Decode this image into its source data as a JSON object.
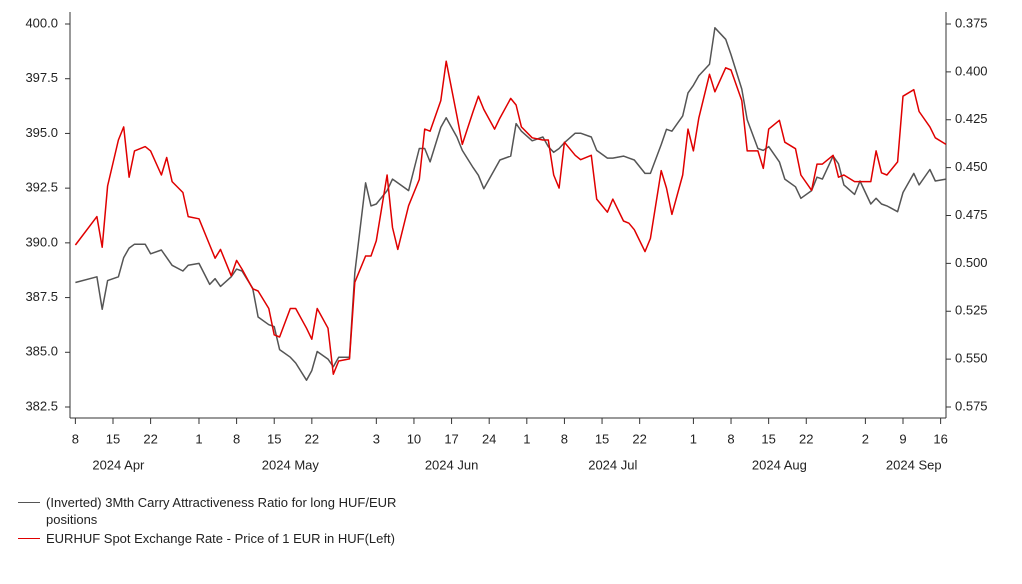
{
  "chart_data": {
    "type": "line",
    "x": [
      "2024-04-08",
      "2024-04-12",
      "2024-04-13",
      "2024-04-14",
      "2024-04-16",
      "2024-04-17",
      "2024-04-18",
      "2024-04-19",
      "2024-04-21",
      "2024-04-22",
      "2024-04-24",
      "2024-04-25",
      "2024-04-26",
      "2024-04-28",
      "2024-04-29",
      "2024-05-01",
      "2024-05-03",
      "2024-05-04",
      "2024-05-05",
      "2024-05-07",
      "2024-05-08",
      "2024-05-09",
      "2024-05-11",
      "2024-05-12",
      "2024-05-14",
      "2024-05-15",
      "2024-05-16",
      "2024-05-18",
      "2024-05-19",
      "2024-05-21",
      "2024-05-22",
      "2024-05-23",
      "2024-05-25",
      "2024-05-26",
      "2024-05-27",
      "2024-05-29",
      "2024-05-30",
      "2024-06-01",
      "2024-06-02",
      "2024-06-03",
      "2024-06-05",
      "2024-06-06",
      "2024-06-07",
      "2024-06-09",
      "2024-06-11",
      "2024-06-12",
      "2024-06-13",
      "2024-06-15",
      "2024-06-16",
      "2024-06-18",
      "2024-06-19",
      "2024-06-21",
      "2024-06-22",
      "2024-06-23",
      "2024-06-25",
      "2024-06-26",
      "2024-06-28",
      "2024-06-29",
      "2024-06-30",
      "2024-07-02",
      "2024-07-04",
      "2024-07-05",
      "2024-07-06",
      "2024-07-07",
      "2024-07-08",
      "2024-07-10",
      "2024-07-11",
      "2024-07-13",
      "2024-07-14",
      "2024-07-16",
      "2024-07-17",
      "2024-07-19",
      "2024-07-20",
      "2024-07-21",
      "2024-07-23",
      "2024-07-24",
      "2024-07-26",
      "2024-07-27",
      "2024-07-28",
      "2024-07-30",
      "2024-07-31",
      "2024-08-01",
      "2024-08-02",
      "2024-08-04",
      "2024-08-05",
      "2024-08-07",
      "2024-08-08",
      "2024-08-10",
      "2024-08-11",
      "2024-08-13",
      "2024-08-14",
      "2024-08-15",
      "2024-08-17",
      "2024-08-18",
      "2024-08-20",
      "2024-08-21",
      "2024-08-23",
      "2024-08-24",
      "2024-08-25",
      "2024-08-27",
      "2024-08-28",
      "2024-08-29",
      "2024-08-31",
      "2024-09-01",
      "2024-09-03",
      "2024-09-04",
      "2024-09-05",
      "2024-09-06",
      "2024-09-08",
      "2024-09-09",
      "2024-09-11",
      "2024-09-12",
      "2024-09-14",
      "2024-09-15",
      "2024-09-17"
    ],
    "series": [
      {
        "name": "(Inverted) 3Mth Carry Attractiveness Ratio for long HUF/EUR positions",
        "color": "#555555",
        "axis": "y2",
        "values": [
          0.51,
          0.507,
          0.524,
          0.509,
          0.507,
          0.497,
          0.492,
          0.49,
          0.49,
          0.495,
          0.493,
          0.497,
          0.501,
          0.504,
          0.501,
          0.5,
          0.511,
          0.508,
          0.512,
          0.507,
          0.503,
          0.504,
          0.513,
          0.528,
          0.532,
          0.533,
          0.545,
          0.549,
          0.552,
          0.561,
          0.556,
          0.546,
          0.55,
          0.554,
          0.549,
          0.549,
          0.505,
          0.458,
          0.47,
          0.469,
          0.462,
          0.456,
          0.458,
          0.462,
          0.44,
          0.44,
          0.447,
          0.429,
          0.424,
          0.434,
          0.441,
          0.45,
          0.454,
          0.461,
          0.451,
          0.446,
          0.444,
          0.427,
          0.431,
          0.436,
          0.434,
          0.439,
          0.442,
          0.44,
          0.437,
          0.432,
          0.432,
          0.434,
          0.441,
          0.445,
          0.445,
          0.444,
          0.445,
          0.446,
          0.453,
          0.453,
          0.438,
          0.43,
          0.431,
          0.423,
          0.411,
          0.407,
          0.402,
          0.396,
          0.377,
          0.383,
          0.391,
          0.409,
          0.425,
          0.44,
          0.441,
          0.439,
          0.447,
          0.456,
          0.46,
          0.466,
          0.462,
          0.455,
          0.456,
          0.444,
          0.448,
          0.459,
          0.464,
          0.457,
          0.469,
          0.466,
          0.469,
          0.47,
          0.473,
          0.463,
          0.453,
          0.459,
          0.451,
          0.457,
          0.456
        ]
      },
      {
        "name": "EURHUF Spot Exchange Rate - Price of 1 EUR in HUF(Left)",
        "color": "#e00000",
        "values": [
          389.9,
          391.2,
          389.8,
          392.6,
          394.7,
          395.3,
          393.0,
          394.2,
          394.4,
          394.2,
          393.1,
          393.9,
          392.8,
          392.3,
          391.2,
          391.1,
          389.9,
          389.3,
          389.7,
          388.5,
          389.2,
          388.8,
          387.9,
          387.8,
          387.0,
          385.8,
          385.7,
          387.0,
          387.0,
          386.1,
          385.6,
          387.0,
          386.1,
          384.0,
          384.6,
          384.7,
          388.2,
          389.4,
          389.4,
          390.1,
          393.1,
          390.7,
          389.7,
          391.7,
          392.9,
          395.2,
          395.1,
          396.5,
          398.3,
          395.8,
          394.5,
          396.0,
          396.7,
          396.1,
          395.2,
          395.7,
          396.6,
          396.3,
          395.3,
          394.8,
          394.7,
          394.7,
          393.1,
          392.5,
          394.6,
          394.0,
          393.8,
          394.0,
          392.0,
          391.4,
          392.0,
          391.0,
          390.9,
          390.6,
          389.6,
          390.2,
          393.3,
          392.5,
          391.3,
          393.1,
          395.2,
          394.2,
          395.7,
          397.7,
          396.9,
          398.0,
          397.9,
          396.5,
          394.2,
          394.2,
          393.4,
          395.2,
          395.6,
          394.6,
          394.3,
          393.1,
          392.4,
          393.6,
          393.6,
          394.0,
          393.0,
          393.1,
          392.8,
          392.8,
          392.8,
          394.2,
          393.2,
          393.1,
          393.7,
          396.7,
          397.0,
          396.0,
          395.3,
          394.8,
          394.5
        ]
      }
    ],
    "xlim": [
      "2024-04-07",
      "2024-09-17"
    ],
    "xticks": [
      {
        "value": "2024-04-08",
        "label": "8"
      },
      {
        "value": "2024-04-15",
        "label": "15"
      },
      {
        "value": "2024-04-22",
        "label": "22"
      },
      {
        "value": "2024-05-01",
        "label": "1"
      },
      {
        "value": "2024-05-08",
        "label": "8"
      },
      {
        "value": "2024-05-15",
        "label": "15"
      },
      {
        "value": "2024-05-22",
        "label": "22"
      },
      {
        "value": "2024-06-03",
        "label": "3"
      },
      {
        "value": "2024-06-10",
        "label": "10"
      },
      {
        "value": "2024-06-17",
        "label": "17"
      },
      {
        "value": "2024-06-24",
        "label": "24"
      },
      {
        "value": "2024-07-01",
        "label": "1"
      },
      {
        "value": "2024-07-08",
        "label": "8"
      },
      {
        "value": "2024-07-15",
        "label": "15"
      },
      {
        "value": "2024-07-22",
        "label": "22"
      },
      {
        "value": "2024-08-01",
        "label": "1"
      },
      {
        "value": "2024-08-08",
        "label": "8"
      },
      {
        "value": "2024-08-15",
        "label": "15"
      },
      {
        "value": "2024-08-22",
        "label": "22"
      },
      {
        "value": "2024-09-02",
        "label": "2"
      },
      {
        "value": "2024-09-09",
        "label": "9"
      },
      {
        "value": "2024-09-16",
        "label": "16"
      }
    ],
    "month_labels": [
      {
        "value": "2024-04-16",
        "label": "2024 Apr"
      },
      {
        "value": "2024-05-18",
        "label": "2024 May"
      },
      {
        "value": "2024-06-17",
        "label": "2024 Jun"
      },
      {
        "value": "2024-07-17",
        "label": "2024 Jul"
      },
      {
        "value": "2024-08-17",
        "label": "2024 Aug"
      },
      {
        "value": "2024-09-11",
        "label": "2024 Sep"
      }
    ],
    "ylim": [
      382.5,
      400
    ],
    "yticks": [
      {
        "value": 382.5,
        "label": "382.5"
      },
      {
        "value": 385,
        "label": "385.0"
      },
      {
        "value": 387.5,
        "label": "387.5"
      },
      {
        "value": 390,
        "label": "390.0"
      },
      {
        "value": 392.5,
        "label": "392.5"
      },
      {
        "value": 395,
        "label": "395.0"
      },
      {
        "value": 397.5,
        "label": "397.5"
      },
      {
        "value": 400,
        "label": "400.0"
      }
    ],
    "y2lim": [
      0.575,
      0.375
    ],
    "y2ticks": [
      {
        "value": 0.375,
        "label": "0.375"
      },
      0.4,
      {
        "value": 0.425,
        "label": "0.425"
      },
      {
        "value": 0.45,
        "label": "0.450"
      },
      {
        "value": 0.475,
        "label": "0.475"
      },
      {
        "value": 0.5,
        "label": "0.500"
      },
      {
        "value": 0.525,
        "label": "0.525"
      },
      {
        "value": 0.55,
        "label": "0.550"
      },
      {
        "value": 0.575,
        "label": "0.575"
      }
    ],
    "grid": false,
    "legend": "bottom-left"
  }
}
